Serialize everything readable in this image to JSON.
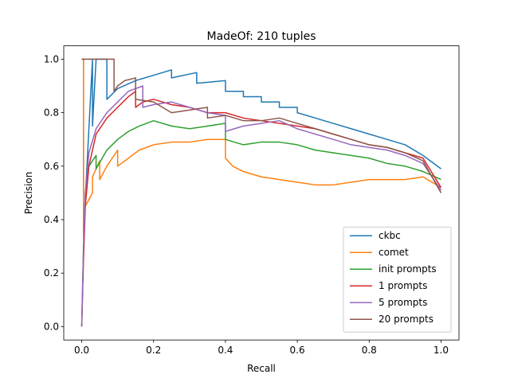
{
  "chart_data": {
    "type": "line",
    "title": "MadeOf: 210 tuples",
    "xlabel": "Recall",
    "ylabel": "Precision",
    "xlim": [
      -0.05,
      1.05
    ],
    "ylim": [
      -0.05,
      1.05
    ],
    "xticks": [
      0.0,
      0.2,
      0.4,
      0.6,
      0.8,
      1.0
    ],
    "xtick_labels": [
      "0.0",
      "0.2",
      "0.4",
      "0.6",
      "0.8",
      "1.0"
    ],
    "yticks": [
      0.0,
      0.2,
      0.4,
      0.6,
      0.8,
      1.0
    ],
    "ytick_labels": [
      "0.0",
      "0.2",
      "0.4",
      "0.6",
      "0.8",
      "1.0"
    ],
    "grid": false,
    "legend_position": "lower right",
    "series": [
      {
        "name": "ckbc",
        "color": "#1f77b4",
        "points": [
          [
            0,
            1.0
          ],
          [
            0.005,
            1.0
          ],
          [
            0.005,
            0.35
          ],
          [
            0.03,
            1.0
          ],
          [
            0.03,
            0.75
          ],
          [
            0.04,
            1.0
          ],
          [
            0.07,
            1.0
          ],
          [
            0.07,
            0.85
          ],
          [
            0.1,
            0.89
          ],
          [
            0.15,
            0.92
          ],
          [
            0.2,
            0.94
          ],
          [
            0.25,
            0.96
          ],
          [
            0.25,
            0.93
          ],
          [
            0.32,
            0.95
          ],
          [
            0.32,
            0.91
          ],
          [
            0.4,
            0.92
          ],
          [
            0.4,
            0.88
          ],
          [
            0.45,
            0.88
          ],
          [
            0.45,
            0.86
          ],
          [
            0.5,
            0.86
          ],
          [
            0.5,
            0.84
          ],
          [
            0.55,
            0.84
          ],
          [
            0.55,
            0.82
          ],
          [
            0.6,
            0.82
          ],
          [
            0.6,
            0.8
          ],
          [
            0.65,
            0.78
          ],
          [
            0.7,
            0.76
          ],
          [
            0.75,
            0.74
          ],
          [
            0.8,
            0.72
          ],
          [
            0.85,
            0.7
          ],
          [
            0.9,
            0.68
          ],
          [
            0.95,
            0.64
          ],
          [
            1.0,
            0.59
          ]
        ]
      },
      {
        "name": "comet",
        "color": "#ff7f0e",
        "points": [
          [
            0,
            1.0
          ],
          [
            0.005,
            1.0
          ],
          [
            0.005,
            0.33
          ],
          [
            0.01,
            0.45
          ],
          [
            0.03,
            0.5
          ],
          [
            0.03,
            0.56
          ],
          [
            0.05,
            0.62
          ],
          [
            0.05,
            0.55
          ],
          [
            0.07,
            0.6
          ],
          [
            0.1,
            0.66
          ],
          [
            0.1,
            0.6
          ],
          [
            0.13,
            0.63
          ],
          [
            0.16,
            0.66
          ],
          [
            0.2,
            0.68
          ],
          [
            0.25,
            0.69
          ],
          [
            0.3,
            0.69
          ],
          [
            0.35,
            0.7
          ],
          [
            0.4,
            0.7
          ],
          [
            0.4,
            0.63
          ],
          [
            0.42,
            0.6
          ],
          [
            0.45,
            0.58
          ],
          [
            0.5,
            0.56
          ],
          [
            0.55,
            0.55
          ],
          [
            0.6,
            0.54
          ],
          [
            0.65,
            0.53
          ],
          [
            0.7,
            0.53
          ],
          [
            0.75,
            0.54
          ],
          [
            0.8,
            0.55
          ],
          [
            0.85,
            0.55
          ],
          [
            0.9,
            0.55
          ],
          [
            0.95,
            0.56
          ],
          [
            1.0,
            0.52
          ]
        ]
      },
      {
        "name": "init prompts",
        "color": "#2ca02c",
        "points": [
          [
            0,
            0.0
          ],
          [
            0.005,
            0.3
          ],
          [
            0.01,
            0.5
          ],
          [
            0.02,
            0.6
          ],
          [
            0.04,
            0.64
          ],
          [
            0.04,
            0.59
          ],
          [
            0.07,
            0.66
          ],
          [
            0.1,
            0.7
          ],
          [
            0.13,
            0.73
          ],
          [
            0.16,
            0.75
          ],
          [
            0.2,
            0.77
          ],
          [
            0.25,
            0.75
          ],
          [
            0.3,
            0.74
          ],
          [
            0.35,
            0.75
          ],
          [
            0.4,
            0.76
          ],
          [
            0.4,
            0.7
          ],
          [
            0.45,
            0.68
          ],
          [
            0.5,
            0.69
          ],
          [
            0.55,
            0.69
          ],
          [
            0.6,
            0.68
          ],
          [
            0.65,
            0.66
          ],
          [
            0.7,
            0.65
          ],
          [
            0.75,
            0.64
          ],
          [
            0.8,
            0.63
          ],
          [
            0.85,
            0.61
          ],
          [
            0.9,
            0.6
          ],
          [
            0.95,
            0.58
          ],
          [
            1.0,
            0.55
          ]
        ]
      },
      {
        "name": "1 prompts",
        "color": "#d62728",
        "points": [
          [
            0,
            0.0
          ],
          [
            0.005,
            0.25
          ],
          [
            0.01,
            0.45
          ],
          [
            0.02,
            0.6
          ],
          [
            0.04,
            0.72
          ],
          [
            0.07,
            0.78
          ],
          [
            0.1,
            0.82
          ],
          [
            0.13,
            0.86
          ],
          [
            0.15,
            0.88
          ],
          [
            0.15,
            0.82
          ],
          [
            0.17,
            0.84
          ],
          [
            0.2,
            0.85
          ],
          [
            0.25,
            0.83
          ],
          [
            0.3,
            0.82
          ],
          [
            0.35,
            0.8
          ],
          [
            0.4,
            0.8
          ],
          [
            0.45,
            0.78
          ],
          [
            0.5,
            0.77
          ],
          [
            0.55,
            0.76
          ],
          [
            0.6,
            0.75
          ],
          [
            0.65,
            0.74
          ],
          [
            0.7,
            0.72
          ],
          [
            0.75,
            0.7
          ],
          [
            0.8,
            0.68
          ],
          [
            0.85,
            0.67
          ],
          [
            0.9,
            0.65
          ],
          [
            0.95,
            0.63
          ],
          [
            1.0,
            0.52
          ]
        ]
      },
      {
        "name": "5 prompts",
        "color": "#9467bd",
        "points": [
          [
            0,
            0.0
          ],
          [
            0.005,
            0.3
          ],
          [
            0.01,
            0.5
          ],
          [
            0.02,
            0.65
          ],
          [
            0.04,
            0.74
          ],
          [
            0.07,
            0.8
          ],
          [
            0.1,
            0.84
          ],
          [
            0.13,
            0.88
          ],
          [
            0.17,
            0.9
          ],
          [
            0.17,
            0.82
          ],
          [
            0.2,
            0.83
          ],
          [
            0.25,
            0.84
          ],
          [
            0.3,
            0.82
          ],
          [
            0.35,
            0.8
          ],
          [
            0.4,
            0.79
          ],
          [
            0.4,
            0.73
          ],
          [
            0.45,
            0.75
          ],
          [
            0.5,
            0.76
          ],
          [
            0.55,
            0.77
          ],
          [
            0.6,
            0.74
          ],
          [
            0.65,
            0.72
          ],
          [
            0.7,
            0.7
          ],
          [
            0.75,
            0.68
          ],
          [
            0.8,
            0.67
          ],
          [
            0.85,
            0.66
          ],
          [
            0.9,
            0.64
          ],
          [
            0.95,
            0.61
          ],
          [
            1.0,
            0.51
          ]
        ]
      },
      {
        "name": "20 prompts",
        "color": "#8c564b",
        "points": [
          [
            0,
            1.0
          ],
          [
            0.09,
            1.0
          ],
          [
            0.09,
            0.88
          ],
          [
            0.1,
            0.9
          ],
          [
            0.12,
            0.92
          ],
          [
            0.15,
            0.93
          ],
          [
            0.15,
            0.85
          ],
          [
            0.2,
            0.84
          ],
          [
            0.25,
            0.8
          ],
          [
            0.3,
            0.81
          ],
          [
            0.35,
            0.82
          ],
          [
            0.35,
            0.78
          ],
          [
            0.4,
            0.79
          ],
          [
            0.45,
            0.77
          ],
          [
            0.5,
            0.77
          ],
          [
            0.55,
            0.78
          ],
          [
            0.6,
            0.76
          ],
          [
            0.65,
            0.74
          ],
          [
            0.7,
            0.72
          ],
          [
            0.75,
            0.7
          ],
          [
            0.8,
            0.68
          ],
          [
            0.85,
            0.67
          ],
          [
            0.9,
            0.65
          ],
          [
            0.95,
            0.62
          ],
          [
            1.0,
            0.5
          ]
        ]
      }
    ]
  }
}
